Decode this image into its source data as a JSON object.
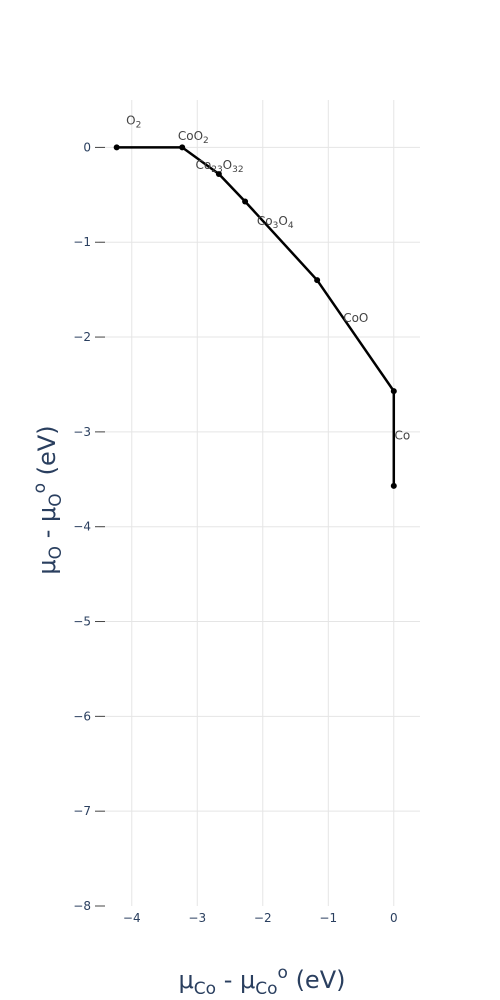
{
  "chart_data": {
    "type": "line",
    "title": "",
    "xlim": [
      -4.5,
      0.4
    ],
    "ylim": [
      -8,
      0.5
    ],
    "x_ticks": [
      -4,
      -3,
      -2,
      -1,
      0
    ],
    "y_ticks": [
      0,
      -1,
      -2,
      -3,
      -4,
      -5,
      -6,
      -7,
      -8
    ],
    "x_tick_labels": [
      "−4",
      "−3",
      "−2",
      "−1",
      "0"
    ],
    "y_tick_labels": [
      "0",
      "−1",
      "−2",
      "−3",
      "−4",
      "−5",
      "−6",
      "−7",
      "−8"
    ],
    "grid": true,
    "series": [
      {
        "x": [
          -4.23,
          -3.23,
          -2.67,
          -2.27,
          -1.17,
          0.0,
          0.0
        ],
        "y": [
          0.0,
          0.0,
          -0.28,
          -0.57,
          -1.4,
          -2.57,
          -3.57
        ],
        "color": "#000000"
      }
    ],
    "xlabel": {
      "mu": "μ",
      "sub1": "Co",
      "mid": " - μ",
      "sub2": "Co",
      "sup": "o",
      "tail": " (eV)"
    },
    "ylabel": {
      "mu": "μ",
      "sub1": "O",
      "mid": " - μ",
      "sub2": "O",
      "sup": "o",
      "tail": " (eV)"
    },
    "annotations": [
      {
        "x": -3.97,
        "y": 0.24,
        "parts": [
          {
            "t": "O"
          },
          {
            "t": "2",
            "sub": true
          }
        ]
      },
      {
        "x": -3.06,
        "y": 0.08,
        "parts": [
          {
            "t": "CoO"
          },
          {
            "t": "2",
            "sub": true
          }
        ]
      },
      {
        "x": -2.66,
        "y": -0.23,
        "parts": [
          {
            "t": "Co"
          },
          {
            "t": "23",
            "sub": true
          },
          {
            "t": "O"
          },
          {
            "t": "32",
            "sub": true
          }
        ]
      },
      {
        "x": -1.81,
        "y": -0.82,
        "parts": [
          {
            "t": "Co"
          },
          {
            "t": "3",
            "sub": true
          },
          {
            "t": "O"
          },
          {
            "t": "4",
            "sub": true
          }
        ]
      },
      {
        "x": -0.58,
        "y": -1.84,
        "parts": [
          {
            "t": "CoO"
          }
        ]
      },
      {
        "x": 0.13,
        "y": -3.08,
        "parts": [
          {
            "t": "Co"
          }
        ]
      }
    ]
  }
}
